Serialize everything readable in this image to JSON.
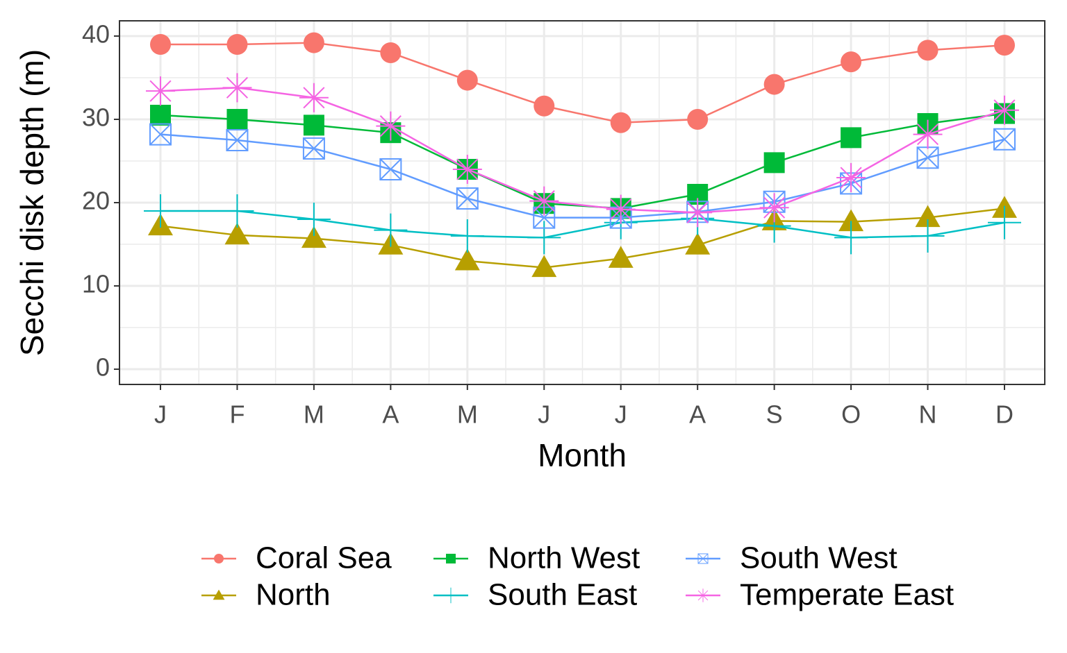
{
  "chart_data": {
    "type": "line",
    "x_label": "Month",
    "y_label": "Secchi disk depth (m)",
    "categories": [
      "J",
      "F",
      "M",
      "A",
      "M",
      "J",
      "J",
      "A",
      "S",
      "O",
      "N",
      "D"
    ],
    "ylim": [
      -1.83,
      41.83
    ],
    "yticks": [
      0,
      10,
      20,
      30,
      40
    ],
    "grid": true,
    "legend": "bottom",
    "series": [
      {
        "name": "Coral Sea",
        "color": "#F8766D",
        "marker": "circle",
        "values": [
          39,
          39,
          39.2,
          38,
          34.7,
          31.6,
          29.6,
          30,
          34.2,
          36.9,
          38.3,
          38.9
        ]
      },
      {
        "name": "North",
        "color": "#B79F00",
        "marker": "triangle",
        "values": [
          17.2,
          16.1,
          15.7,
          14.9,
          13,
          12.2,
          13.3,
          14.9,
          17.8,
          17.7,
          18.2,
          19.3
        ]
      },
      {
        "name": "North West",
        "color": "#00BA38",
        "marker": "square",
        "values": [
          30.5,
          30,
          29.3,
          28.4,
          24,
          19.9,
          19.3,
          21,
          24.8,
          27.8,
          29.5,
          30.7
        ]
      },
      {
        "name": "South East",
        "color": "#00BFC4",
        "marker": "plus",
        "values": [
          19,
          19,
          18,
          16.7,
          16,
          15.8,
          17.6,
          18.1,
          17.2,
          15.8,
          16,
          17.6
        ]
      },
      {
        "name": "South West",
        "color": "#619CFF",
        "marker": "boxx",
        "values": [
          28.2,
          27.5,
          26.5,
          24,
          20.5,
          18.2,
          18.2,
          18.9,
          20.1,
          22.3,
          25.4,
          27.6
        ]
      },
      {
        "name": "Temperate East",
        "color": "#F564E3",
        "marker": "asterisk",
        "values": [
          33.4,
          33.8,
          32.6,
          29.2,
          24,
          20.2,
          19.2,
          18.8,
          19.4,
          23,
          28.2,
          31.1
        ]
      }
    ]
  }
}
